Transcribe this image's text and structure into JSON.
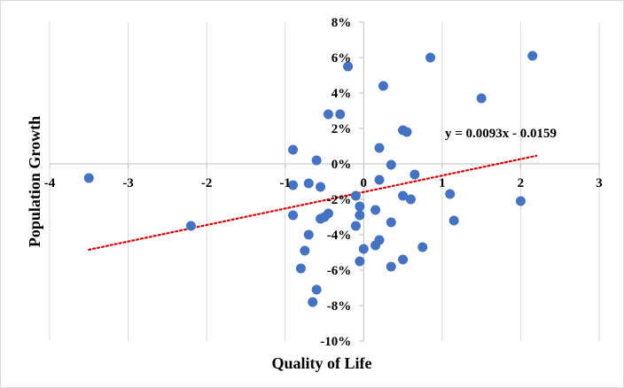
{
  "chart_data": {
    "type": "scatter",
    "title": "",
    "xlabel": "Quality of Life",
    "ylabel": "Population Growth",
    "xlim": [
      -4,
      3
    ],
    "ylim": [
      -0.1,
      0.08
    ],
    "x_ticks": [
      -4,
      -3,
      -2,
      -1,
      0,
      1,
      2,
      3
    ],
    "x_tick_labels": [
      "-4",
      "-3",
      "-2",
      "-1",
      "0",
      "1",
      "2",
      "3"
    ],
    "y_ticks": [
      -0.1,
      -0.08,
      -0.06,
      -0.04,
      -0.02,
      0.0,
      0.02,
      0.04,
      0.06,
      0.08
    ],
    "y_tick_labels": [
      "-10%",
      "-8%",
      "-6%",
      "-4%",
      "-2%",
      "0%",
      "2%",
      "4%",
      "6%",
      "8%"
    ],
    "grid": "vertical",
    "legend": "none",
    "marker_color": "#4472c4",
    "trendline_color": "#e00000",
    "trendline": {
      "slope": 0.0093,
      "intercept": -0.0159,
      "x_range": [
        -3.5,
        2.2
      ],
      "style": "dotted"
    },
    "equation_label": "y = 0.0093x - 0.0159",
    "series": [
      {
        "points": [
          [
            -3.5,
            -0.008
          ],
          [
            -2.2,
            -0.035
          ],
          [
            -0.9,
            0.008
          ],
          [
            -0.9,
            -0.012
          ],
          [
            -0.9,
            -0.029
          ],
          [
            -0.6,
            0.002
          ],
          [
            -0.55,
            -0.013
          ],
          [
            -0.7,
            -0.011
          ],
          [
            -0.6,
            -0.071
          ],
          [
            -0.55,
            -0.031
          ],
          [
            -0.5,
            -0.03
          ],
          [
            -0.45,
            -0.028
          ],
          [
            -0.7,
            -0.04
          ],
          [
            -0.75,
            -0.049
          ],
          [
            -0.8,
            -0.059
          ],
          [
            -0.65,
            -0.078
          ],
          [
            -0.45,
            0.028
          ],
          [
            -0.3,
            0.028
          ],
          [
            -0.2,
            0.055
          ],
          [
            -0.1,
            -0.018
          ],
          [
            -0.05,
            -0.029
          ],
          [
            -0.1,
            -0.035
          ],
          [
            -0.05,
            -0.024
          ],
          [
            0.0,
            -0.048
          ],
          [
            -0.05,
            -0.055
          ],
          [
            0.15,
            -0.026
          ],
          [
            0.15,
            -0.046
          ],
          [
            0.2,
            -0.043
          ],
          [
            0.2,
            0.009
          ],
          [
            0.2,
            -0.009
          ],
          [
            0.25,
            0.044
          ],
          [
            0.35,
            -0.058
          ],
          [
            0.35,
            -0.033
          ],
          [
            0.35,
            -0.0005
          ],
          [
            0.5,
            -0.054
          ],
          [
            0.5,
            0.019
          ],
          [
            0.55,
            0.018
          ],
          [
            0.5,
            -0.018
          ],
          [
            0.6,
            -0.02
          ],
          [
            0.65,
            -0.006
          ],
          [
            0.75,
            -0.047
          ],
          [
            0.85,
            0.06
          ],
          [
            1.1,
            -0.017
          ],
          [
            1.15,
            -0.032
          ],
          [
            1.5,
            0.037
          ],
          [
            2.0,
            -0.021
          ],
          [
            2.15,
            0.061
          ]
        ]
      }
    ]
  }
}
